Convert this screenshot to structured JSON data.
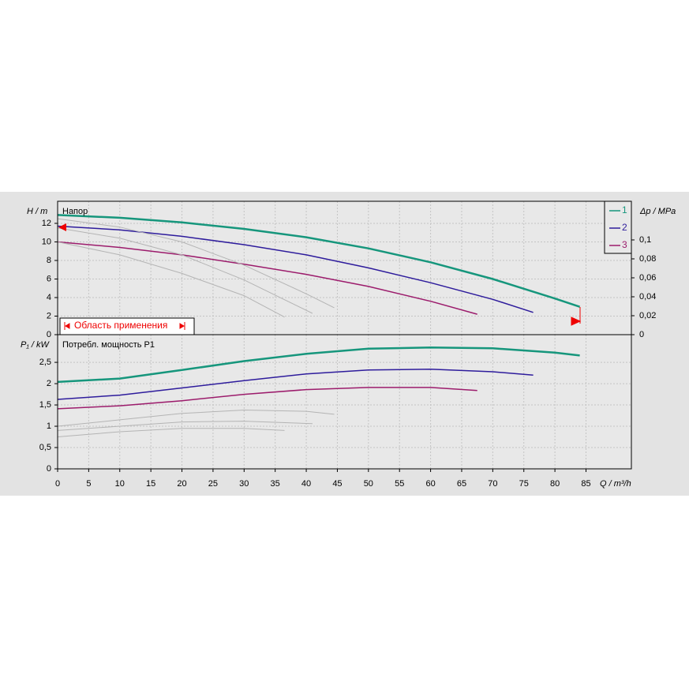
{
  "chart_data": [
    {
      "type": "line",
      "title": "Напор",
      "y_label": "H / m",
      "y2_label": "Δp / MPa",
      "range_label": "Область применения",
      "xlim": [
        0,
        92.3
      ],
      "xticks": [
        0,
        5,
        10,
        15,
        20,
        25,
        30,
        35,
        40,
        45,
        50,
        55,
        60,
        65,
        70,
        75,
        80,
        85
      ],
      "ylim": [
        0,
        14.38
      ],
      "yticks": [
        0,
        2,
        4,
        6,
        8,
        10,
        12
      ],
      "y2lim": [
        0,
        0.1408
      ],
      "y2ticks": [
        0,
        {
          "value": 0.02,
          "label": "0,02"
        },
        {
          "value": 0.04,
          "label": "0,04"
        },
        {
          "value": 0.06,
          "label": "0,06"
        },
        {
          "value": 0.08,
          "label": "0,08"
        },
        {
          "value": 0.1,
          "label": "0,1"
        }
      ],
      "grid": true,
      "series": [
        {
          "name": "1",
          "color": "#16967c",
          "x": [
            0,
            10,
            20,
            30,
            40,
            50,
            60,
            70,
            80,
            84
          ],
          "values": [
            12.9,
            12.6,
            12.1,
            11.4,
            10.5,
            9.3,
            7.8,
            6.0,
            3.9,
            3.0
          ]
        },
        {
          "name": "2",
          "color": "#2e1c9c",
          "x": [
            0,
            10,
            20,
            30,
            40,
            50,
            60,
            70,
            76.5
          ],
          "values": [
            11.7,
            11.3,
            10.6,
            9.7,
            8.6,
            7.2,
            5.6,
            3.8,
            2.4
          ]
        },
        {
          "name": "3",
          "color": "#9c1c6c",
          "x": [
            0,
            10,
            20,
            30,
            40,
            50,
            60,
            67.5
          ],
          "values": [
            10.0,
            9.4,
            8.6,
            7.6,
            6.5,
            5.2,
            3.6,
            2.2
          ]
        },
        {
          "color": "#b4b4b4",
          "x": [
            0,
            10,
            20,
            30,
            40,
            44.5
          ],
          "values": [
            12.5,
            11.6,
            10.0,
            7.5,
            4.4,
            2.9
          ]
        },
        {
          "color": "#b4b4b4",
          "x": [
            0,
            10,
            20,
            30,
            41
          ],
          "values": [
            11.5,
            10.4,
            8.6,
            5.9,
            2.3
          ]
        },
        {
          "color": "#b4b4b4",
          "x": [
            0,
            10,
            20,
            30,
            36.5
          ],
          "values": [
            10.0,
            8.6,
            6.6,
            4.2,
            1.9
          ]
        }
      ]
    },
    {
      "type": "line",
      "title": "Потребл. мощность P1",
      "y_label": "P₁ / kW",
      "x_label": "Q / m³/h",
      "xlim": [
        0,
        92.3
      ],
      "xticks": [
        0,
        5,
        10,
        15,
        20,
        25,
        30,
        35,
        40,
        45,
        50,
        55,
        60,
        65,
        70,
        75,
        80,
        85
      ],
      "ylim": [
        0,
        3.15
      ],
      "yticks": [
        0,
        {
          "value": 0.5,
          "label": "0,5"
        },
        1,
        {
          "value": 1.5,
          "label": "1,5"
        },
        2,
        {
          "value": 2.5,
          "label": "2,5"
        }
      ],
      "grid": true,
      "series": [
        {
          "color": "#16967c",
          "x": [
            0,
            10,
            20,
            30,
            40,
            50,
            60,
            70,
            80,
            84
          ],
          "values": [
            2.04,
            2.12,
            2.32,
            2.53,
            2.7,
            2.82,
            2.85,
            2.83,
            2.73,
            2.66
          ]
        },
        {
          "color": "#2e1c9c",
          "x": [
            0,
            10,
            20,
            30,
            40,
            50,
            60,
            70,
            76.5
          ],
          "values": [
            1.63,
            1.73,
            1.9,
            2.07,
            2.23,
            2.32,
            2.34,
            2.28,
            2.2
          ]
        },
        {
          "color": "#9c1c6c",
          "x": [
            0,
            10,
            20,
            30,
            40,
            50,
            60,
            67.5
          ],
          "values": [
            1.41,
            1.48,
            1.6,
            1.75,
            1.86,
            1.91,
            1.91,
            1.84
          ]
        },
        {
          "color": "#b4b4b4",
          "x": [
            0,
            10,
            20,
            30,
            40,
            44.5
          ],
          "values": [
            1.0,
            1.15,
            1.3,
            1.38,
            1.35,
            1.28
          ]
        },
        {
          "color": "#b4b4b4",
          "x": [
            0,
            10,
            20,
            30,
            41
          ],
          "values": [
            0.9,
            1.0,
            1.1,
            1.12,
            1.06
          ]
        },
        {
          "color": "#b4b4b4",
          "x": [
            0,
            10,
            20,
            30,
            36.5
          ],
          "values": [
            0.75,
            0.87,
            0.95,
            0.95,
            0.9
          ]
        }
      ]
    }
  ]
}
